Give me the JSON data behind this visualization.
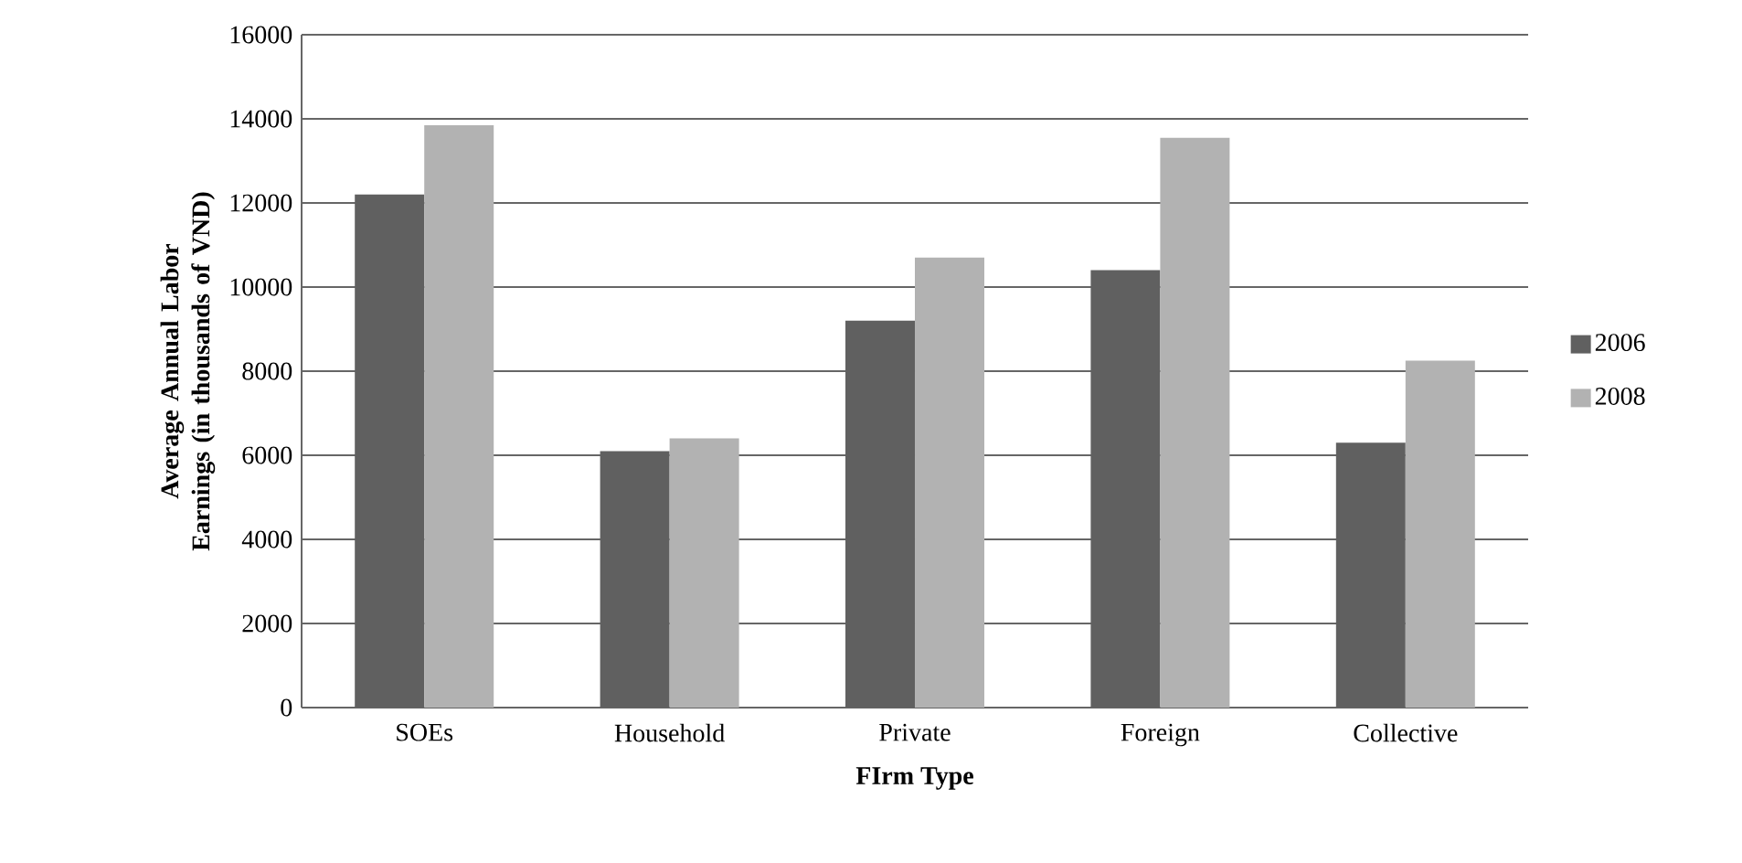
{
  "chart_data": {
    "type": "bar",
    "xlabel": "FIrm Type",
    "ylabel": "Average Annual Labor Earnings (in thousands of VND)",
    "categories": [
      "SOEs",
      "Household",
      "Private",
      "Foreign",
      "Collective"
    ],
    "series": [
      {
        "name": "2006",
        "color": "#606060",
        "values": [
          12200,
          6100,
          9200,
          10400,
          6300
        ]
      },
      {
        "name": "2008",
        "color": "#b2b2b2",
        "values": [
          13850,
          6400,
          10700,
          13550,
          8250
        ]
      }
    ],
    "ylim": [
      0,
      16000
    ],
    "yticks": [
      0,
      2000,
      4000,
      6000,
      8000,
      10000,
      12000,
      14000,
      16000
    ],
    "grid": "y",
    "legend": "right"
  }
}
